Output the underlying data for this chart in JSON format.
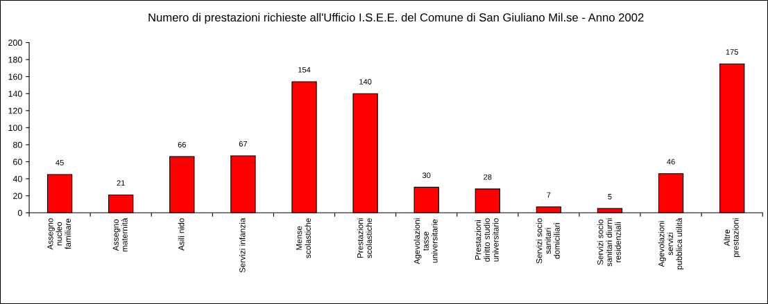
{
  "chart_data": {
    "type": "bar",
    "title": "Numero di prestazioni richieste all'Ufficio I.S.E.E. del Comune di San Giuliano Mil.se - Anno 2002",
    "categories": [
      "Assegno\nnucleo\nfamiliare",
      "Assegno\nmaternità",
      "Asili nido",
      "Servizi infanzia",
      "Mense\nscolastiche",
      "Prestazioni\nscolastiche",
      "Agevolazioni\ntasse\nuniversitarie",
      "Prestazioni\ndiritto studio\nuniversitario",
      "Servizi socio\nsanitari\ndomiciliari",
      "Servizi socio\nsanitari diurni\nresidenziali",
      "Agevolazioni\nservizi\npubblica utilità",
      "Altre\nprestazioni"
    ],
    "values": [
      45,
      21,
      66,
      67,
      154,
      140,
      30,
      28,
      7,
      5,
      46,
      175
    ],
    "color": "#ff0000",
    "ylim": [
      0,
      200
    ],
    "yticks": [
      0,
      20,
      40,
      60,
      80,
      100,
      120,
      140,
      160,
      180,
      200
    ],
    "grid": false,
    "data_labels": true
  }
}
